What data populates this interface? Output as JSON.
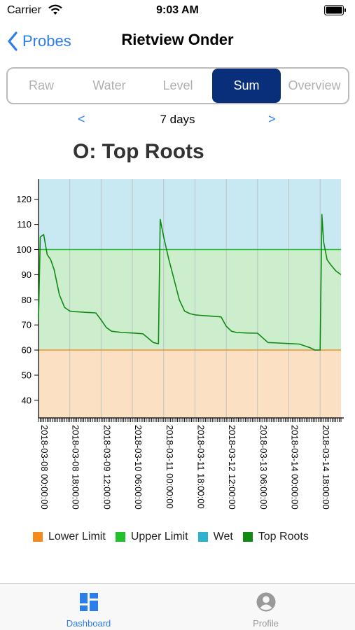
{
  "status_bar": {
    "carrier": "Carrier",
    "time": "9:03 AM"
  },
  "nav": {
    "back_label": "Probes",
    "title": "Rietview Onder"
  },
  "segments": [
    "Raw",
    "Water",
    "Level",
    "Sum",
    "Overview"
  ],
  "selected_segment": "Sum",
  "range": {
    "prev": "<",
    "label": "7 days",
    "next": ">"
  },
  "colors": {
    "accent": "#2b7de9",
    "segment_selected": "#0a2f7a",
    "lower_limit": "#f28a1c",
    "upper_limit": "#22c02a",
    "wet": "#2fb2d0",
    "top_roots": "#118a14"
  },
  "chart_data": {
    "type": "line",
    "title": "O: Top Roots",
    "ylim": [
      33,
      128
    ],
    "yticks": [
      40,
      50,
      60,
      70,
      80,
      90,
      100,
      110,
      120
    ],
    "x_start": "2018-03-08 00:00:00",
    "x_end": "2018-03-15 06:00:00",
    "xtick_labels": [
      "2018-03-08 00:00:00",
      "2018-03-08 18:00:00",
      "2018-03-09 12:00:00",
      "2018-03-10 06:00:00",
      "2018-03-11 00:00:00",
      "2018-03-11 18:00:00",
      "2018-03-12 12:00:00",
      "2018-03-13 06:00:00",
      "2018-03-14 00:00:00",
      "2018-03-14 18:00:00"
    ],
    "grid": true,
    "legend_position": "bottom",
    "bands": {
      "lower_limit": 60,
      "upper_limit": 100
    },
    "series": [
      {
        "name": "Top Roots",
        "x": [
          "2018-03-08 00:00",
          "2018-03-08 01:00",
          "2018-03-08 03:00",
          "2018-03-08 05:00",
          "2018-03-08 07:00",
          "2018-03-08 09:00",
          "2018-03-08 12:00",
          "2018-03-08 15:00",
          "2018-03-08 18:00",
          "2018-03-08 21:00",
          "2018-03-09 03:00",
          "2018-03-09 09:00",
          "2018-03-09 12:00",
          "2018-03-09 15:00",
          "2018-03-09 18:00",
          "2018-03-10 00:00",
          "2018-03-10 06:00",
          "2018-03-10 12:00",
          "2018-03-10 18:00",
          "2018-03-10 21:00",
          "2018-03-10 22:00",
          "2018-03-11 00:00",
          "2018-03-11 01:00",
          "2018-03-11 03:00",
          "2018-03-11 06:00",
          "2018-03-11 09:00",
          "2018-03-11 12:00",
          "2018-03-11 15:00",
          "2018-03-11 18:00",
          "2018-03-11 21:00",
          "2018-03-12 03:00",
          "2018-03-12 09:00",
          "2018-03-12 12:00",
          "2018-03-12 15:00",
          "2018-03-12 18:00",
          "2018-03-13 00:00",
          "2018-03-13 06:00",
          "2018-03-13 12:00",
          "2018-03-13 18:00",
          "2018-03-14 00:00",
          "2018-03-14 06:00",
          "2018-03-14 12:00",
          "2018-03-14 15:00",
          "2018-03-14 18:00",
          "2018-03-14 19:00",
          "2018-03-14 20:00",
          "2018-03-14 22:00",
          "2018-03-15 00:00",
          "2018-03-15 03:00",
          "2018-03-15 06:00"
        ],
        "y": [
          72,
          105,
          106,
          98,
          96,
          92,
          82,
          77,
          75.5,
          75.3,
          75,
          74.8,
          72,
          69,
          67.5,
          67,
          66.8,
          66.5,
          63,
          62.5,
          112,
          105,
          102,
          96,
          88,
          80,
          75.5,
          74.5,
          74,
          73.8,
          73.5,
          73.2,
          69.5,
          67.5,
          67,
          66.8,
          66.7,
          63,
          62.8,
          62.6,
          62.4,
          61,
          60,
          60,
          114,
          103,
          96,
          94,
          91.5,
          90
        ]
      }
    ],
    "legend": [
      {
        "name": "Lower Limit",
        "color": "#f28a1c"
      },
      {
        "name": "Upper Limit",
        "color": "#22c02a"
      },
      {
        "name": "Wet",
        "color": "#2fb2d0"
      },
      {
        "name": "Top Roots",
        "color": "#118a14"
      }
    ]
  },
  "tabs": [
    {
      "label": "Dashboard",
      "icon": "dashboard-icon",
      "selected": true
    },
    {
      "label": "Profile",
      "icon": "profile-icon",
      "selected": false
    }
  ]
}
